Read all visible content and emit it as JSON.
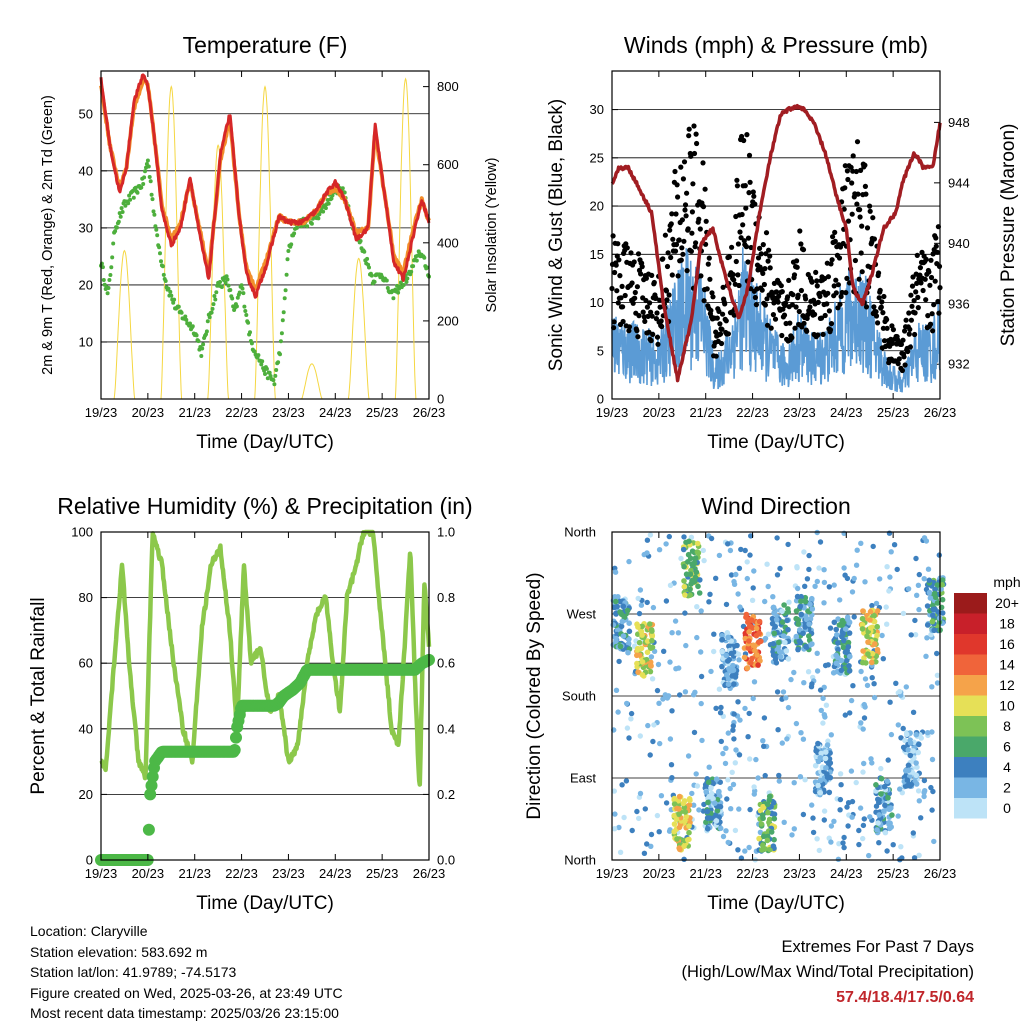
{
  "chart_data": [
    {
      "type": "line",
      "title": "Temperature (F)",
      "xlabel": "Time (Day/UTC)",
      "ylabel": "2m & 9m T (Red, Orange) & 2m Td (Green)",
      "ylabel_right": "Solar Insolation (Yellow)",
      "x_ticks": [
        "19/23",
        "20/23",
        "21/23",
        "22/23",
        "23/23",
        "24/23",
        "25/23",
        "26/23"
      ],
      "ylim": [
        0,
        57.5
      ],
      "y_ticks": [
        10,
        20,
        30,
        40,
        50
      ],
      "ylim_right": [
        0,
        840
      ],
      "y_ticks_right": [
        0,
        200,
        400,
        600,
        800
      ],
      "grid": true,
      "series": [
        {
          "name": "2m T",
          "color": "#d62728",
          "x": [
            0,
            0.2,
            0.4,
            0.55,
            0.7,
            0.9,
            1.0,
            1.15,
            1.3,
            1.5,
            1.7,
            1.9,
            2.1,
            2.3,
            2.55,
            2.75,
            2.95,
            3.1,
            3.3,
            3.55,
            3.8,
            4.0,
            4.3,
            4.6,
            4.8,
            5.0,
            5.2,
            5.45,
            5.7,
            5.85,
            6.05,
            6.25,
            6.45,
            6.7,
            6.85,
            7.0
          ],
          "y": [
            56,
            44,
            36,
            41,
            52,
            57,
            55,
            45,
            33,
            27,
            30,
            39,
            29,
            21,
            43,
            50,
            32,
            22,
            18,
            24,
            32,
            31,
            31,
            33,
            36,
            38,
            35,
            28,
            30,
            48,
            36,
            24,
            21,
            30,
            35,
            31
          ]
        },
        {
          "name": "9m T",
          "color": "#f28e2b",
          "x": [
            0,
            0.2,
            0.4,
            0.55,
            0.7,
            0.9,
            1.0,
            1.15,
            1.3,
            1.5,
            1.7,
            1.9,
            2.1,
            2.3,
            2.55,
            2.75,
            2.95,
            3.1,
            3.3,
            3.55,
            3.8,
            4.0,
            4.3,
            4.6,
            4.8,
            5.0,
            5.2,
            5.45,
            5.7,
            5.85,
            6.05,
            6.25,
            6.45,
            6.7,
            6.85,
            7.0
          ],
          "y": [
            55,
            44,
            37,
            41,
            51,
            56,
            55,
            45,
            34,
            28,
            31,
            38,
            30,
            22,
            42,
            49,
            32,
            23,
            19,
            25,
            32,
            31,
            31,
            33,
            36,
            37,
            35,
            29,
            30,
            47,
            36,
            25,
            22,
            31,
            35,
            31
          ]
        },
        {
          "name": "2m Td",
          "color": "#4daf3c",
          "x": [
            0,
            0.15,
            0.3,
            0.5,
            0.7,
            0.9,
            1.0,
            1.2,
            1.4,
            1.6,
            1.8,
            2.0,
            2.15,
            2.3,
            2.5,
            2.7,
            2.85,
            3.0,
            3.2,
            3.5,
            3.7,
            3.85,
            4.0,
            4.2,
            4.4,
            4.6,
            4.8,
            5.0,
            5.2,
            5.4,
            5.6,
            5.8,
            6.0,
            6.2,
            6.4,
            6.6,
            6.8,
            7.0
          ],
          "y": [
            24,
            18,
            30,
            34,
            36,
            38,
            42,
            28,
            20,
            16,
            14,
            12,
            8,
            14,
            20,
            21,
            15,
            20,
            10,
            5,
            3,
            10,
            26,
            31,
            31,
            32,
            34,
            37,
            36,
            30,
            26,
            21,
            22,
            18,
            20,
            22,
            26,
            22
          ]
        }
      ],
      "insolation": [
        {
          "day": 0.5,
          "peak": 380
        },
        {
          "day": 1.5,
          "peak": 800
        },
        {
          "day": 2.5,
          "peak": 650
        },
        {
          "day": 3.5,
          "peak": 800
        },
        {
          "day": 4.5,
          "peak": 90
        },
        {
          "day": 5.5,
          "peak": 360
        },
        {
          "day": 6.5,
          "peak": 820
        }
      ],
      "insolation_color": "#f5d742"
    },
    {
      "type": "scatter",
      "title": "Winds (mph) & Pressure (mb)",
      "xlabel": "Time (Day/UTC)",
      "ylabel": "Sonic Wind & Gust (Blue, Black)",
      "ylabel_right": "Station Pressure (Maroon)",
      "x_ticks": [
        "19/23",
        "20/23",
        "21/23",
        "22/23",
        "23/23",
        "24/23",
        "25/23",
        "26/23"
      ],
      "ylim": [
        0,
        34
      ],
      "y_ticks": [
        0,
        5,
        10,
        15,
        20,
        25,
        30
      ],
      "ylim_right": [
        929.7,
        951.4
      ],
      "y_ticks_right": [
        932,
        936,
        940,
        944,
        948
      ],
      "grid": true,
      "wind_profile": {
        "x": [
          0,
          0.5,
          1.0,
          1.3,
          1.6,
          1.9,
          2.2,
          2.5,
          2.8,
          3.1,
          3.4,
          3.7,
          4.0,
          4.3,
          4.6,
          4.8,
          5.0,
          5.3,
          5.6,
          5.9,
          6.2,
          6.5,
          6.8,
          7.0
        ],
        "y": [
          7,
          6,
          5,
          9,
          12,
          11,
          3,
          6,
          12,
          9,
          6,
          4,
          7,
          5,
          6,
          8,
          10,
          11,
          7,
          3,
          2,
          6,
          6,
          8
        ]
      },
      "gust_color": "#000000",
      "sonic_color": "#5b9bd5",
      "pressure": {
        "name": "Station Pressure",
        "color": "#a11d22",
        "x": [
          0,
          0.15,
          0.35,
          0.6,
          0.85,
          1.1,
          1.4,
          1.7,
          1.9,
          2.15,
          2.4,
          2.7,
          2.9,
          3.15,
          3.4,
          3.6,
          3.85,
          4.05,
          4.3,
          4.55,
          4.8,
          5.0,
          5.15,
          5.35,
          5.55,
          5.8,
          6.05,
          6.2,
          6.45,
          6.65,
          6.85,
          7.0
        ],
        "y": [
          944,
          945,
          945,
          943.5,
          942,
          936,
          931,
          935,
          940,
          941,
          938,
          935,
          937,
          942,
          946,
          948.5,
          949,
          949,
          948,
          946,
          943,
          941,
          937,
          936,
          938,
          941,
          942,
          944,
          946,
          945,
          945,
          948
        ]
      }
    },
    {
      "type": "line",
      "title": "Relative Humidity (%) & Precipitation (in)",
      "xlabel": "Time (Day/UTC)",
      "ylabel": "Percent & Total Rainfall",
      "x_ticks": [
        "19/23",
        "20/23",
        "21/23",
        "22/23",
        "23/23",
        "24/23",
        "25/23",
        "26/23"
      ],
      "ylim": [
        0,
        100
      ],
      "y_ticks": [
        0,
        20,
        40,
        60,
        80,
        100
      ],
      "ylim_right": [
        0,
        1.0
      ],
      "y_ticks_right": [
        0.0,
        0.2,
        0.4,
        0.6,
        0.8,
        1.0
      ],
      "grid": true,
      "series": [
        {
          "name": "Relative Humidity",
          "color": "#8cc84b",
          "x": [
            0,
            0.1,
            0.25,
            0.45,
            0.6,
            0.8,
            0.95,
            1.1,
            1.3,
            1.55,
            1.75,
            1.95,
            2.15,
            2.35,
            2.55,
            2.75,
            2.9,
            3.05,
            3.2,
            3.4,
            3.6,
            3.8,
            4.0,
            4.2,
            4.4,
            4.6,
            4.8,
            4.95,
            5.1,
            5.25,
            5.45,
            5.6,
            5.8,
            6.0,
            6.2,
            6.35,
            6.5,
            6.6,
            6.7,
            6.8,
            6.9,
            7.0
          ],
          "y": [
            30,
            28,
            55,
            90,
            60,
            30,
            25,
            100,
            90,
            60,
            40,
            30,
            70,
            90,
            95,
            70,
            40,
            90,
            60,
            65,
            45,
            50,
            30,
            35,
            60,
            75,
            80,
            60,
            45,
            80,
            90,
            100,
            100,
            70,
            40,
            35,
            70,
            95,
            55,
            20,
            85,
            65
          ]
        },
        {
          "name": "Total Rainfall",
          "color": "#4cb847",
          "x": [
            0,
            0.9,
            1.0,
            1.05,
            1.15,
            1.3,
            2.85,
            2.9,
            3.0,
            3.7,
            3.8,
            3.9,
            4.1,
            4.25,
            4.4,
            6.6,
            6.7,
            6.85,
            7.0
          ],
          "y": [
            0,
            0,
            0,
            0.2,
            0.3,
            0.33,
            0.33,
            0.4,
            0.47,
            0.47,
            0.48,
            0.5,
            0.52,
            0.54,
            0.58,
            0.58,
            0.58,
            0.6,
            0.61
          ]
        }
      ]
    },
    {
      "type": "scatter",
      "title": "Wind Direction",
      "xlabel": "Time (Day/UTC)",
      "ylabel": "Direction (Colored By Speed)",
      "x_ticks": [
        "19/23",
        "20/23",
        "21/23",
        "22/23",
        "23/23",
        "24/23",
        "25/23",
        "26/23"
      ],
      "y_ticks": [
        "North",
        "East",
        "South",
        "West",
        "North"
      ],
      "ylim": [
        0,
        360
      ],
      "grid": true,
      "legend": {
        "title": "mph",
        "placement": "right",
        "labels": [
          "20+",
          "18",
          "16",
          "14",
          "12",
          "10",
          "8",
          "6",
          "4",
          "2",
          "0"
        ],
        "colors": [
          "#9b1b1b",
          "#c8202a",
          "#e0372c",
          "#f0643a",
          "#f5a34a",
          "#e6e057",
          "#7dc256",
          "#4aa86a",
          "#3d80bf",
          "#79b6e4",
          "#bde3f7"
        ]
      },
      "direction_clusters": [
        {
          "x": 0.2,
          "dir": 255,
          "speed": 4
        },
        {
          "x": 0.7,
          "dir": 230,
          "speed": 10
        },
        {
          "x": 1.5,
          "dir": 40,
          "speed": 10
        },
        {
          "x": 1.7,
          "dir": 320,
          "speed": 7
        },
        {
          "x": 2.15,
          "dir": 60,
          "speed": 3
        },
        {
          "x": 2.5,
          "dir": 220,
          "speed": 2
        },
        {
          "x": 3.0,
          "dir": 240,
          "speed": 14
        },
        {
          "x": 3.3,
          "dir": 40,
          "speed": 7
        },
        {
          "x": 3.6,
          "dir": 250,
          "speed": 3
        },
        {
          "x": 4.1,
          "dir": 260,
          "speed": 4
        },
        {
          "x": 4.5,
          "dir": 100,
          "speed": 2
        },
        {
          "x": 4.9,
          "dir": 235,
          "speed": 4
        },
        {
          "x": 5.5,
          "dir": 245,
          "speed": 10
        },
        {
          "x": 5.8,
          "dir": 60,
          "speed": 3
        },
        {
          "x": 6.4,
          "dir": 110,
          "speed": 2
        },
        {
          "x": 6.9,
          "dir": 280,
          "speed": 5
        }
      ]
    }
  ],
  "station": {
    "location": "Location: Claryville",
    "elevation": "Station elevation: 583.692 m",
    "latlon": "Station lat/lon: 41.9789; -74.5173",
    "created": "Figure created on Wed, 2025-03-26, at 23:49 UTC",
    "latest": "Most recent data timestamp: 2025/03/26 23:15:00"
  },
  "extremes": {
    "title": "Extremes For Past 7 Days",
    "subtitle": "(High/Low/Max Wind/Total Precipitation)",
    "values": "57.4/18.4/17.5/0.64"
  }
}
